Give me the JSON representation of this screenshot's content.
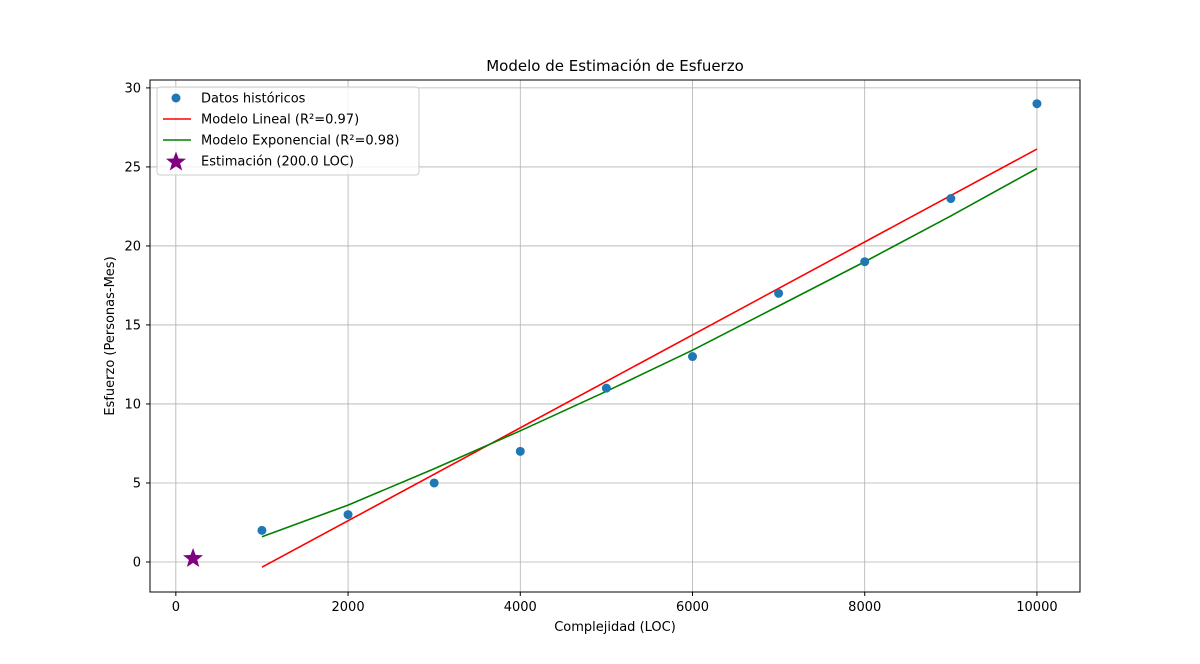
{
  "chart_data": {
    "type": "scatter",
    "title": "Modelo de Estimación de Esfuerzo",
    "xlabel": "Complejidad (LOC)",
    "ylabel": "Esfuerzo (Personas-Mes)",
    "xlim": [
      -300,
      10500
    ],
    "ylim": [
      -1.9,
      30.5
    ],
    "xticks": [
      0,
      2000,
      4000,
      6000,
      8000,
      10000
    ],
    "xtick_labels": [
      "0",
      "2000",
      "4000",
      "6000",
      "8000",
      "10000"
    ],
    "yticks": [
      0,
      5,
      10,
      15,
      20,
      25,
      30
    ],
    "ytick_labels": [
      "0",
      "5",
      "10",
      "15",
      "20",
      "25",
      "30"
    ],
    "grid": true,
    "legend_position": "top-left",
    "series": [
      {
        "name": "Datos históricos",
        "kind": "scatter",
        "color": "#1f77b4",
        "x": [
          1000,
          2000,
          3000,
          4000,
          5000,
          6000,
          7000,
          8000,
          9000,
          10000
        ],
        "y": [
          2,
          3,
          5,
          7,
          11,
          13,
          17,
          19,
          23,
          29
        ]
      },
      {
        "name": "Modelo Lineal (R²=0.97)",
        "kind": "line",
        "color": "#ff0000",
        "x": [
          1000,
          10000
        ],
        "y": [
          -0.33,
          26.13
        ]
      },
      {
        "name": "Modelo Exponencial (R²=0.98)",
        "kind": "line",
        "color": "#008000",
        "x": [
          1000,
          2000,
          3000,
          4000,
          5000,
          6000,
          7000,
          8000,
          9000,
          10000
        ],
        "y": [
          1.6,
          3.6,
          5.9,
          8.3,
          10.8,
          13.4,
          16.2,
          19.0,
          21.9,
          24.9
        ]
      },
      {
        "name": "Estimación (200.0 LOC)",
        "kind": "star",
        "color": "#800080",
        "x": [
          200
        ],
        "y": [
          0.22
        ]
      }
    ]
  }
}
